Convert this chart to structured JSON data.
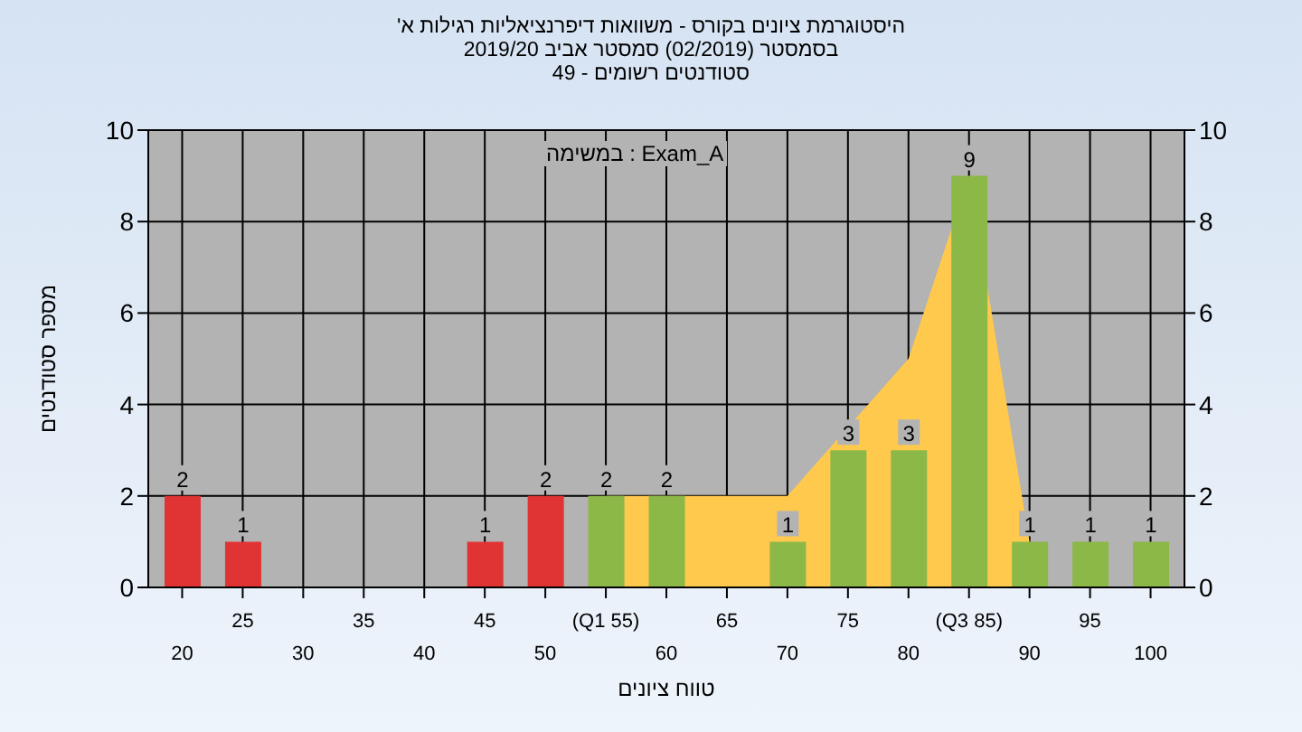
{
  "chart_data": {
    "type": "bar",
    "title": "'היסטוגרמת ציונים בקורס - משוואות דיפרנציאליות רגילות א",
    "subtitle": "בסמסטר  (02/2019)  סמסטר אביב 2019/20\nסטודנטים רשומים - 49",
    "xlabel": "טווח ציונים",
    "ylabel": "מספר סטודנטים",
    "annotations": [
      "במשימה : Exam_A"
    ],
    "categories": [
      "20",
      "25",
      "30",
      "35",
      "40",
      "45",
      "50",
      "(Q1 55)",
      "60",
      "65",
      "70",
      "75",
      "80",
      "(Q3 85)",
      "90",
      "95",
      "100"
    ],
    "series": [
      {
        "type": "area",
        "color": "#ffc94d",
        "values": [
          null,
          null,
          null,
          null,
          null,
          null,
          null,
          2,
          2,
          2,
          2,
          null,
          5,
          9,
          1,
          null,
          null
        ]
      },
      {
        "type": "bar",
        "colors": [
          "#e03434",
          "#e03434",
          "#e03434",
          "#e03434",
          "#e03434",
          "#e03434",
          "#e03434",
          "#8cb848",
          "#8cb848",
          "#8cb848",
          "#8cb848",
          "#8cb848",
          "#8cb848",
          "#8cb848",
          "#8cb848",
          "#8cb848",
          "#8cb848"
        ],
        "values": [
          2,
          1,
          0,
          0,
          0,
          1,
          2,
          2,
          2,
          0,
          1,
          3,
          3,
          9,
          1,
          1,
          1
        ],
        "value_labels": [
          "2",
          "1",
          null,
          null,
          null,
          "1",
          "2",
          "2",
          "2",
          null,
          "1",
          "3",
          "3",
          "9",
          "1",
          "1",
          "1"
        ]
      }
    ],
    "ylim": [
      0,
      10
    ],
    "yticks": [
      0,
      2,
      4,
      6,
      8,
      10
    ],
    "y2lim": [
      0,
      10
    ],
    "y2ticks": [
      0,
      2,
      4,
      6,
      8,
      10
    ],
    "grid": true
  }
}
